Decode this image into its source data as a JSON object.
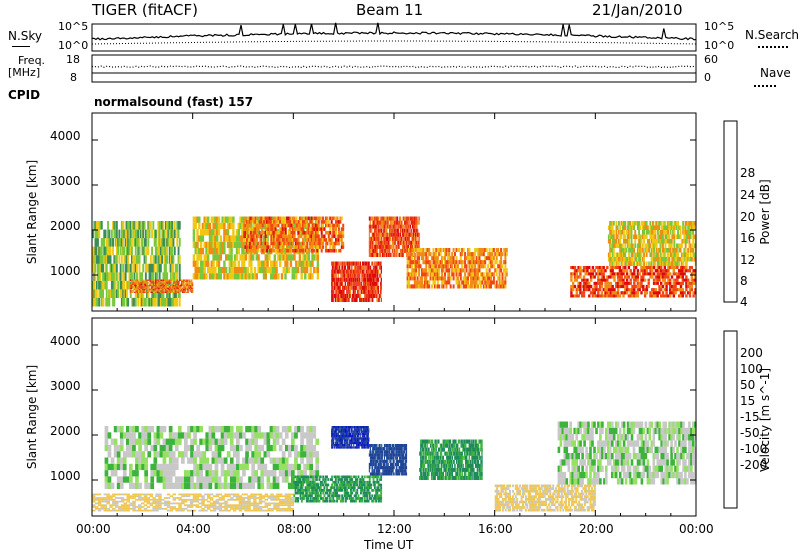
{
  "header": {
    "radar": "TIGER (fitACF)",
    "beam": "Beam 11",
    "date": "21/Jan/2010"
  },
  "panels_top": {
    "nsky_label": "N.Sky",
    "nsky_top": "10^5",
    "nsky_bottom": "10^0",
    "nsearch_label": "N.Search",
    "freq_label_1": "Freq.",
    "freq_label_2": "[MHz]",
    "freq_top": "18",
    "freq_bottom": "8",
    "nave_top": "60",
    "nave_bottom": "0",
    "nave_label": "Nave",
    "cpid_label": "CPID",
    "cpid_value": "normalsound (fast) 157"
  },
  "colors": {
    "power_scale": [
      "#0a1edc",
      "#1e46b4",
      "#3c8c5a",
      "#78c83c",
      "#f0c814",
      "#f08c14",
      "#f04614",
      "#dc0a0a"
    ],
    "velocity_scale": [
      "#e60000",
      "#ff5a00",
      "#ff9c1e",
      "#f0c850",
      "#c8c8c8",
      "#c8c8c8",
      "#96e164",
      "#3cb43c",
      "#1e8c5a",
      "#1e4696",
      "#0a14c8"
    ]
  },
  "chart_data": [
    {
      "type": "heatmap",
      "title": "",
      "xlabel": "Time UT",
      "ylabel": "Slant Range [km]",
      "xlim": [
        "00:00",
        "24:00"
      ],
      "ylim": [
        200,
        4600
      ],
      "x_ticks": [
        "00:00",
        "04:00",
        "08:00",
        "12:00",
        "16:00",
        "20:00",
        "00:00"
      ],
      "y_ticks": [
        1000,
        2000,
        3000,
        4000
      ],
      "colorbar": {
        "label": "Power [dB]",
        "range": [
          0,
          32
        ],
        "ticks": [
          4,
          8,
          12,
          16,
          20,
          24,
          28
        ]
      },
      "echo_regions": [
        {
          "t_start": 0.0,
          "t_end": 3.5,
          "range_low": 300,
          "range_high": 2200,
          "value": 14
        },
        {
          "t_start": 1.5,
          "t_end": 4.0,
          "range_low": 600,
          "range_high": 900,
          "value": 24
        },
        {
          "t_start": 4.0,
          "t_end": 9.0,
          "range_low": 900,
          "range_high": 2300,
          "value": 18
        },
        {
          "t_start": 6.0,
          "t_end": 10.0,
          "range_low": 1500,
          "range_high": 2300,
          "value": 24
        },
        {
          "t_start": 9.5,
          "t_end": 11.5,
          "range_low": 400,
          "range_high": 1300,
          "value": 28
        },
        {
          "t_start": 11.0,
          "t_end": 13.0,
          "range_low": 1400,
          "range_high": 2300,
          "value": 26
        },
        {
          "t_start": 12.5,
          "t_end": 16.5,
          "range_low": 700,
          "range_high": 1600,
          "value": 22
        },
        {
          "t_start": 19.0,
          "t_end": 24.0,
          "range_low": 500,
          "range_high": 1200,
          "value": 26
        },
        {
          "t_start": 20.5,
          "t_end": 24.0,
          "range_low": 1200,
          "range_high": 2200,
          "value": 18
        }
      ]
    },
    {
      "type": "heatmap",
      "title": "",
      "xlabel": "Time UT",
      "ylabel": "Slant Range [km]",
      "xlim": [
        "00:00",
        "24:00"
      ],
      "ylim": [
        200,
        4600
      ],
      "x_ticks": [
        "00:00",
        "04:00",
        "08:00",
        "12:00",
        "16:00",
        "20:00",
        "00:00"
      ],
      "y_ticks": [
        1000,
        2000,
        3000,
        4000
      ],
      "colorbar": {
        "label": "Velocity [m s^-1]",
        "range": [
          -250,
          250
        ],
        "ticks": [
          200,
          100,
          50,
          15,
          -15,
          -50,
          -100,
          -200
        ]
      },
      "echo_regions": [
        {
          "t_start": 0.0,
          "t_end": 8.0,
          "range_low": 300,
          "range_high": 700,
          "value": -60
        },
        {
          "t_start": 0.5,
          "t_end": 9.0,
          "range_low": 800,
          "range_high": 2200,
          "value": 0
        },
        {
          "t_start": 8.0,
          "t_end": 11.5,
          "range_low": 500,
          "range_high": 1100,
          "value": 60
        },
        {
          "t_start": 9.5,
          "t_end": 11.0,
          "range_low": 1700,
          "range_high": 2200,
          "value": 200
        },
        {
          "t_start": 11.0,
          "t_end": 12.5,
          "range_low": 1100,
          "range_high": 1800,
          "value": 150
        },
        {
          "t_start": 13.0,
          "t_end": 15.5,
          "range_low": 1000,
          "range_high": 1900,
          "value": 60
        },
        {
          "t_start": 16.0,
          "t_end": 20.0,
          "range_low": 300,
          "range_high": 900,
          "value": -60
        },
        {
          "t_start": 18.5,
          "t_end": 24.0,
          "range_low": 900,
          "range_high": 2300,
          "value": 0
        }
      ]
    }
  ]
}
